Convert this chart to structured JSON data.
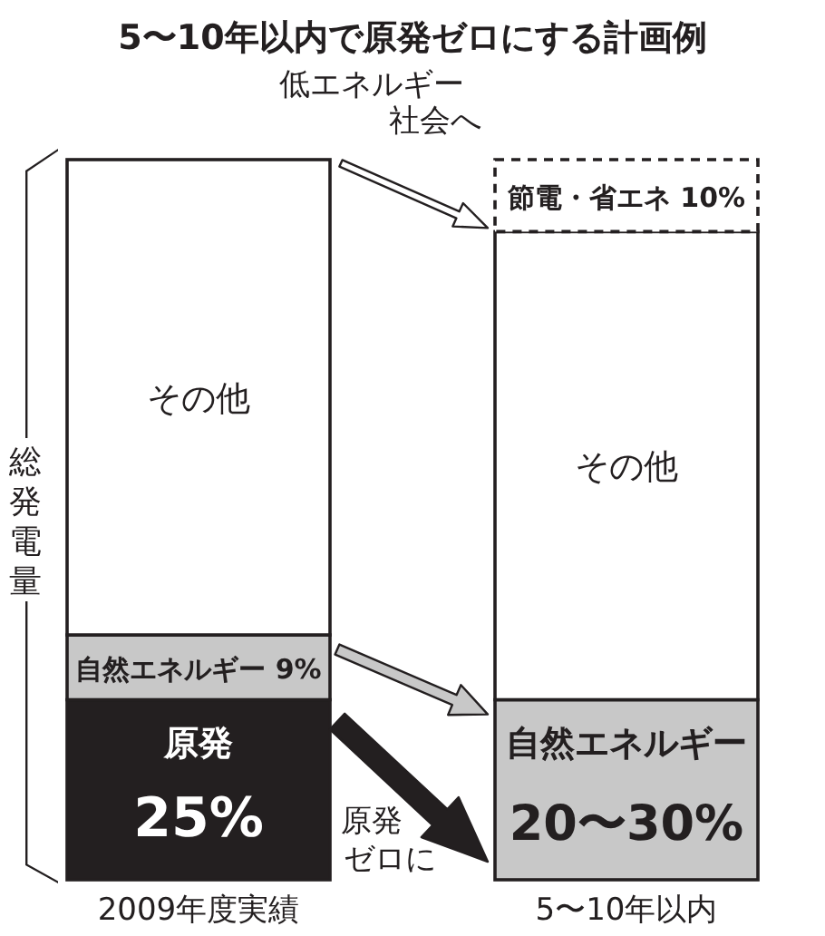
{
  "chart_data": {
    "type": "bar",
    "title": "5〜10年以内で原発ゼロにする計画例",
    "ylabel": "総発電量",
    "categories": [
      "2009年度実績",
      "5〜10年以内"
    ],
    "stacked": true,
    "legend": false,
    "series": [
      {
        "name": "原発",
        "color": "#231f20",
        "values": [
          25,
          null
        ],
        "value_labels": [
          "25%",
          null
        ]
      },
      {
        "name": "自然エネルギー",
        "color": "#c8c8c8",
        "values": [
          9,
          25
        ],
        "value_labels": [
          "9%",
          null
        ]
      },
      {
        "name": "その他",
        "color": "#ffffff",
        "values": [
          66,
          65
        ]
      },
      {
        "name": "節電・省エネ",
        "color": "#ffffff",
        "values": [
          null,
          10
        ],
        "value_labels": [
          null,
          "10%"
        ],
        "line_style": "dashed"
      }
    ],
    "annotations": [
      "低エネルギー社会へ",
      "原発ゼロに",
      "20〜30%"
    ]
  }
}
